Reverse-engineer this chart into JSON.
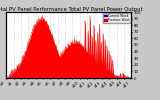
{
  "title": "Total PV Panel Performance Total PV Panel Power Output",
  "bg_color": "#c8c8c8",
  "plot_bg": "#ffffff",
  "fill_color": "#ff0000",
  "line_color": "#dd0000",
  "grid_color": "#aaaaaa",
  "grid_style": ":",
  "ylim": [
    0,
    1
  ],
  "num_points": 500,
  "legend_labels": [
    "Current Week",
    "Previous Week"
  ],
  "legend_colors": [
    "#0000cc",
    "#cc0000"
  ],
  "title_fontsize": 3.8,
  "tick_fontsize": 2.8,
  "right_yticks": [
    0.0,
    0.1,
    0.2,
    0.3,
    0.4,
    0.5,
    0.6,
    0.7,
    0.8,
    0.9,
    1.0
  ],
  "right_yticklabels": [
    "0",
    "10",
    "20",
    "30",
    "40",
    "50",
    "60",
    "70",
    "80",
    "90",
    "100"
  ]
}
